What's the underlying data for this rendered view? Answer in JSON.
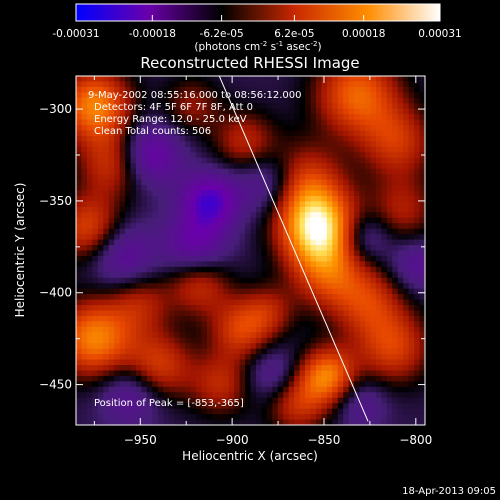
{
  "colorbar": {
    "tick_labels": [
      "-0.00031",
      "-0.00018",
      "-6.2e-05",
      "6.2e-05",
      "0.00018",
      "0.00031"
    ],
    "tick_values": [
      -0.00031,
      -0.00018,
      -6.2e-05,
      6.2e-05,
      0.00018,
      0.00031
    ],
    "range": [
      -0.00031,
      0.00031
    ],
    "unit_main": "(photons cm",
    "unit_exp1": "-2",
    "unit_mid": " s",
    "unit_exp2": "-1",
    "unit_end": " asec",
    "unit_exp3": "-2",
    "unit_close": ")",
    "colors": [
      "#0000ff",
      "#6a00aa",
      "#000000",
      "#c82800",
      "#ff8c00",
      "#ffffff"
    ]
  },
  "chart_data": {
    "type": "heatmap",
    "title": "Reconstructed RHESSI Image",
    "xlabel": "Heliocentric X (arcsec)",
    "ylabel": "Heliocentric Y (arcsec)",
    "xlim": [
      -985,
      -795
    ],
    "ylim": [
      -472,
      -282
    ],
    "x_ticks": [
      -950,
      -900,
      -850,
      -800
    ],
    "y_ticks": [
      -300,
      -350,
      -400,
      -450
    ],
    "annotations": [
      "9-May-2002 08:55:16.000 to 08:56:12.000",
      "Detectors: 4F 5F 6F 7F 8F, Att 0",
      "Energy Range: 12.0 - 25.0 keV",
      "Clean    Total counts: 506"
    ],
    "peak_label": "Position of Peak = [-853,-365]",
    "peak": [
      -853,
      -365
    ],
    "limb_line": [
      [
        -907,
        -282
      ],
      [
        -826,
        -470
      ]
    ],
    "sources": [
      {
        "x": -853,
        "y": -365,
        "amp": 1.0,
        "w": 15
      },
      {
        "x": -862,
        "y": -340,
        "amp": 0.5,
        "w": 15
      },
      {
        "x": -848,
        "y": -390,
        "amp": 0.45,
        "w": 14
      },
      {
        "x": -832,
        "y": -292,
        "amp": 0.65,
        "w": 16
      },
      {
        "x": -810,
        "y": -318,
        "amp": 0.45,
        "w": 14
      },
      {
        "x": -807,
        "y": -355,
        "amp": 0.35,
        "w": 13
      },
      {
        "x": -826,
        "y": -405,
        "amp": 0.45,
        "w": 14
      },
      {
        "x": -812,
        "y": -430,
        "amp": 0.5,
        "w": 14
      },
      {
        "x": -848,
        "y": -445,
        "amp": 0.7,
        "w": 11
      },
      {
        "x": -865,
        "y": -460,
        "amp": 0.45,
        "w": 12
      },
      {
        "x": -975,
        "y": -298,
        "amp": 0.75,
        "w": 14
      },
      {
        "x": -965,
        "y": -330,
        "amp": 0.45,
        "w": 13
      },
      {
        "x": -978,
        "y": -365,
        "amp": 0.55,
        "w": 13
      },
      {
        "x": -975,
        "y": -425,
        "amp": 0.75,
        "w": 15
      },
      {
        "x": -950,
        "y": -405,
        "amp": 0.35,
        "w": 12
      },
      {
        "x": -940,
        "y": -440,
        "amp": 0.5,
        "w": 13
      },
      {
        "x": -918,
        "y": -395,
        "amp": 0.45,
        "w": 12
      },
      {
        "x": -895,
        "y": -420,
        "amp": 0.5,
        "w": 12
      },
      {
        "x": -906,
        "y": -450,
        "amp": 0.4,
        "w": 12
      },
      {
        "x": -893,
        "y": -318,
        "amp": 0.4,
        "w": 12
      },
      {
        "x": -922,
        "y": -298,
        "amp": 0.3,
        "w": 11
      },
      {
        "x": -880,
        "y": -410,
        "amp": 0.3,
        "w": 10
      },
      {
        "x": -945,
        "y": -325,
        "amp": -0.5,
        "w": 12
      },
      {
        "x": -912,
        "y": -350,
        "amp": -0.6,
        "w": 11
      },
      {
        "x": -920,
        "y": -375,
        "amp": -0.45,
        "w": 12
      },
      {
        "x": -960,
        "y": -380,
        "amp": -0.4,
        "w": 13
      },
      {
        "x": -955,
        "y": -455,
        "amp": -0.35,
        "w": 12
      },
      {
        "x": -880,
        "y": -340,
        "amp": -0.4,
        "w": 12
      },
      {
        "x": -878,
        "y": -445,
        "amp": -0.3,
        "w": 11
      },
      {
        "x": -828,
        "y": -370,
        "amp": -0.35,
        "w": 10
      },
      {
        "x": -800,
        "y": -385,
        "amp": -0.3,
        "w": 10
      },
      {
        "x": -830,
        "y": -460,
        "amp": -0.25,
        "w": 10
      }
    ]
  },
  "footer": {
    "timestamp": "18-Apr-2013 09:05"
  }
}
